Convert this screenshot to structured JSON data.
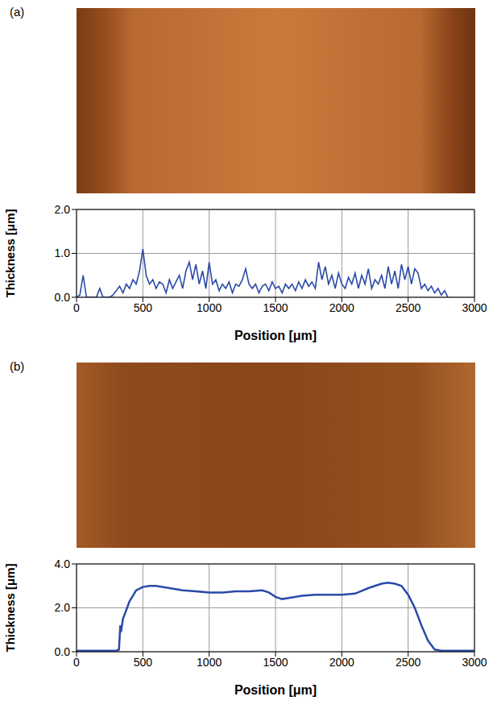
{
  "chart_data": [
    {
      "type": "line",
      "panel": "(a)",
      "x_label": "Position [μm]",
      "y_label": "Thickness [μm]",
      "color": "#2a4aa8",
      "grid": true,
      "xlim": [
        0,
        3000
      ],
      "xticks": [
        0,
        500,
        1000,
        1500,
        2000,
        2500,
        3000
      ],
      "ylim": [
        0,
        2
      ],
      "yticks": [
        {
          "value": 0,
          "label": "0.0"
        },
        {
          "value": 1,
          "label": "1.0"
        },
        {
          "value": 2,
          "label": "2.0"
        }
      ],
      "x": [
        0,
        25,
        50,
        75,
        100,
        125,
        150,
        175,
        200,
        225,
        250,
        275,
        300,
        325,
        350,
        375,
        400,
        425,
        450,
        475,
        500,
        525,
        550,
        575,
        600,
        625,
        650,
        675,
        700,
        725,
        750,
        775,
        800,
        825,
        850,
        875,
        900,
        925,
        950,
        975,
        1000,
        1025,
        1050,
        1075,
        1100,
        1125,
        1150,
        1175,
        1200,
        1225,
        1250,
        1275,
        1300,
        1325,
        1350,
        1375,
        1400,
        1425,
        1450,
        1475,
        1500,
        1525,
        1550,
        1575,
        1600,
        1625,
        1650,
        1675,
        1700,
        1725,
        1750,
        1775,
        1800,
        1825,
        1850,
        1875,
        1900,
        1925,
        1950,
        1975,
        2000,
        2025,
        2050,
        2075,
        2100,
        2125,
        2150,
        2175,
        2200,
        2225,
        2250,
        2275,
        2300,
        2325,
        2350,
        2375,
        2400,
        2425,
        2450,
        2475,
        2500,
        2525,
        2550,
        2575,
        2600,
        2625,
        2650,
        2675,
        2700,
        2725,
        2750,
        2775,
        2800
      ],
      "values": [
        0,
        0.05,
        0.5,
        0,
        0,
        0,
        0,
        0.2,
        0,
        0,
        0,
        0.05,
        0.15,
        0.25,
        0.1,
        0.3,
        0.2,
        0.4,
        0.3,
        0.6,
        1.1,
        0.5,
        0.3,
        0.4,
        0.2,
        0.35,
        0.3,
        0.1,
        0.4,
        0.2,
        0.35,
        0.5,
        0.2,
        0.6,
        0.8,
        0.4,
        0.75,
        0.3,
        0.6,
        0.2,
        0.8,
        0.3,
        0.4,
        0.15,
        0.3,
        0.2,
        0.35,
        0.1,
        0.3,
        0.25,
        0.4,
        0.65,
        0.3,
        0.2,
        0.3,
        0.1,
        0.25,
        0.3,
        0.15,
        0.35,
        0.2,
        0.25,
        0.1,
        0.3,
        0.2,
        0.3,
        0.15,
        0.35,
        0.2,
        0.4,
        0.25,
        0.35,
        0.2,
        0.8,
        0.4,
        0.7,
        0.3,
        0.5,
        0.2,
        0.55,
        0.3,
        0.2,
        0.45,
        0.3,
        0.55,
        0.2,
        0.5,
        0.3,
        0.65,
        0.2,
        0.4,
        0.3,
        0.5,
        0.2,
        0.7,
        0.3,
        0.6,
        0.2,
        0.75,
        0.4,
        0.7,
        0.3,
        0.65,
        0.55,
        0.2,
        0.3,
        0.15,
        0.25,
        0.1,
        0.2,
        0.05,
        0.15,
        0
      ]
    },
    {
      "type": "line",
      "panel": "(b)",
      "x_label": "Position [μm]",
      "y_label": "Thickness [μm]",
      "color": "#2a4aa8",
      "grid": true,
      "xlim": [
        0,
        3000
      ],
      "xticks": [
        0,
        500,
        1000,
        1500,
        2000,
        2500,
        3000
      ],
      "ylim": [
        0,
        4
      ],
      "yticks": [
        {
          "value": 0,
          "label": "0.0"
        },
        {
          "value": 2,
          "label": "2.0"
        },
        {
          "value": 4,
          "label": "4.0"
        }
      ],
      "x": [
        0,
        100,
        200,
        300,
        320,
        330,
        335,
        350,
        400,
        450,
        500,
        550,
        600,
        700,
        800,
        900,
        1000,
        1100,
        1200,
        1300,
        1400,
        1450,
        1500,
        1550,
        1600,
        1700,
        1800,
        1900,
        2000,
        2100,
        2200,
        2300,
        2350,
        2400,
        2450,
        2500,
        2550,
        2600,
        2650,
        2700,
        2750,
        2800,
        2900,
        3000
      ],
      "values": [
        0.05,
        0.05,
        0.05,
        0.05,
        0.1,
        1.2,
        0.9,
        1.5,
        2.3,
        2.8,
        2.95,
        3.0,
        3.0,
        2.9,
        2.8,
        2.75,
        2.7,
        2.7,
        2.75,
        2.75,
        2.8,
        2.7,
        2.5,
        2.4,
        2.45,
        2.55,
        2.6,
        2.6,
        2.6,
        2.65,
        2.9,
        3.1,
        3.15,
        3.1,
        3.0,
        2.6,
        2.0,
        1.2,
        0.5,
        0.1,
        0.05,
        0.05,
        0.05,
        0.05
      ]
    }
  ]
}
